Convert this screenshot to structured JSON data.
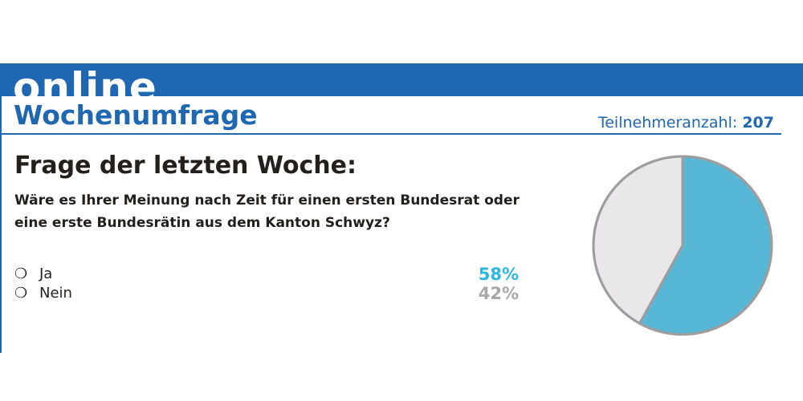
{
  "header": {
    "kicker": "online",
    "title": "Wochenumfrage",
    "participants_label": "Teilnehmeranzahl:",
    "participants_count": "207"
  },
  "question": {
    "heading": "Frage der letzten Woche:",
    "text": "Wäre es Ihrer Meinung nach Zeit für einen ersten Bundesrat oder eine erste Bundesrätin aus dem Kanton Schwyz?"
  },
  "options": [
    {
      "radio": "❍",
      "label": "Ja",
      "percent": "58%",
      "color": "#2ab8e0"
    },
    {
      "radio": "❍",
      "label": "Nein",
      "percent": "42%",
      "color": "#a8a8a8"
    }
  ],
  "colors": {
    "brand_blue": "#1f67b1",
    "text_dark": "#231f1a"
  },
  "chart_data": {
    "type": "pie",
    "categories": [
      "Ja",
      "Nein"
    ],
    "values": [
      58,
      42
    ],
    "colors": [
      "#57b7d6",
      "#e9e7ea"
    ],
    "outline_color": "#9d9d9d"
  }
}
